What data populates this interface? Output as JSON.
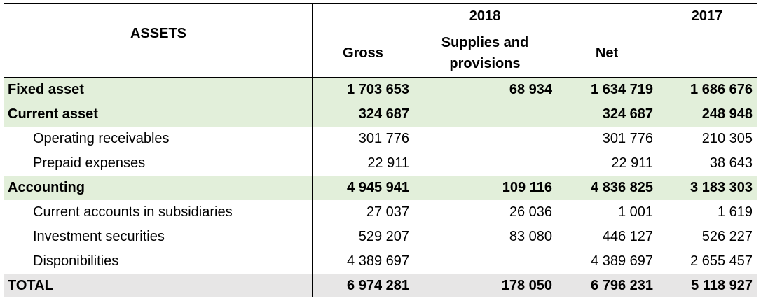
{
  "header": {
    "assets_label": "ASSETS",
    "year_2018": "2018",
    "year_2017": "2017",
    "gross_label": "Gross",
    "supplies_label_line1": "Supplies and",
    "supplies_label_line2": "provisions",
    "net_label": "Net"
  },
  "rows": [
    {
      "label": "Fixed asset",
      "gross": "1 703 653",
      "supplies": "68 934",
      "net": "1 634 719",
      "y2017": "1 686 676"
    },
    {
      "label": "Current asset",
      "gross": "324 687",
      "supplies": "",
      "net": "324 687",
      "y2017": "248 948"
    },
    {
      "label": "Operating receivables",
      "gross": "301 776",
      "supplies": "",
      "net": "301 776",
      "y2017": "210 305"
    },
    {
      "label": "Prepaid expenses",
      "gross": "22 911",
      "supplies": "",
      "net": "22 911",
      "y2017": "38 643"
    },
    {
      "label": "Accounting",
      "gross": "4 945 941",
      "supplies": "109 116",
      "net": "4 836 825",
      "y2017": "3 183 303"
    },
    {
      "label": "Current accounts in subsidiaries",
      "gross": "27 037",
      "supplies": "26 036",
      "net": "1 001",
      "y2017": "1 619"
    },
    {
      "label": "Investment securities",
      "gross": "529 207",
      "supplies": "83 080",
      "net": "446 127",
      "y2017": "526 227"
    },
    {
      "label": "Disponibilities",
      "gross": "4 389 697",
      "supplies": "",
      "net": "4 389 697",
      "y2017": "2 655 457"
    },
    {
      "label": "TOTAL",
      "gross": "6 974 281",
      "supplies": "178 050",
      "net": "6 796 231",
      "y2017": "5 118 927"
    }
  ],
  "colors": {
    "section_fill": "#e2efda",
    "total_fill": "#e7e6e6"
  }
}
